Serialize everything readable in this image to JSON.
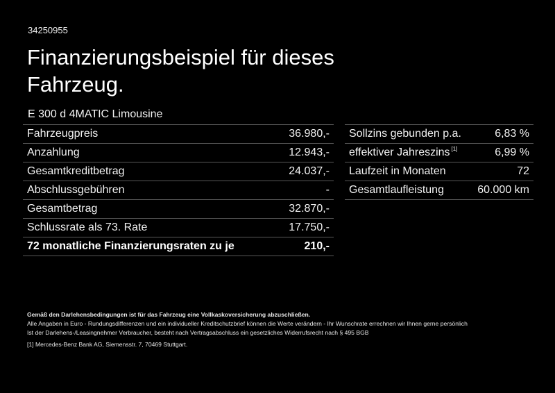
{
  "ref_id": "34250955",
  "title": "Finanzierungsbeispiel für dieses Fahrzeug.",
  "model": "E 300 d 4MATIC Limousine",
  "left_table": [
    {
      "label": "Fahrzeugpreis",
      "value": "36.980,-"
    },
    {
      "label": "Anzahlung",
      "value": "12.943,-"
    },
    {
      "label": "Gesamtkreditbetrag",
      "value": "24.037,-"
    },
    {
      "label": "Abschlussgebühren",
      "value": "-"
    },
    {
      "label": "Gesamtbetrag",
      "value": "32.870,-"
    },
    {
      "label": "Schlussrate als 73. Rate",
      "value": "17.750,-"
    },
    {
      "label": "72 monatliche Finanzierungsraten zu je",
      "value": "210,-",
      "bold": true
    }
  ],
  "right_table": [
    {
      "label": "Sollzins gebunden p.a.",
      "value": "6,83 %"
    },
    {
      "label": "effektiver Jahreszins",
      "footnote": "[1]",
      "value": "6,99 %"
    },
    {
      "label": "Laufzeit in Monaten",
      "value": "72"
    },
    {
      "label": "Gesamtlaufleistung",
      "value": "60.000 km"
    }
  ],
  "footer": {
    "insurance_note": "Gemäß den Darlehensbedingungen ist für das Fahrzeug eine Vollkaskoversicherung abzuschließen.",
    "line1": "Alle Angaben in Euro - Rundungsdifferenzen und ein individueller Kreditschutzbrief können die Werte verändern - Ihr Wunschrate errechnen wir Ihnen gerne persönlich",
    "line2": "Ist der Darlehens-/Leasingnehmer Verbraucher, besteht nach Vertragsabschluss ein gesetzliches Widerrufsrecht nach § 495 BGB",
    "footnote_marker": "[1]",
    "footnote_text": "Mercedes-Benz Bank AG, Siemensstr. 7, 70469 Stuttgart."
  },
  "colors": {
    "background": "#000000",
    "text": "#ffffff",
    "rule": "#5a5a5a"
  }
}
